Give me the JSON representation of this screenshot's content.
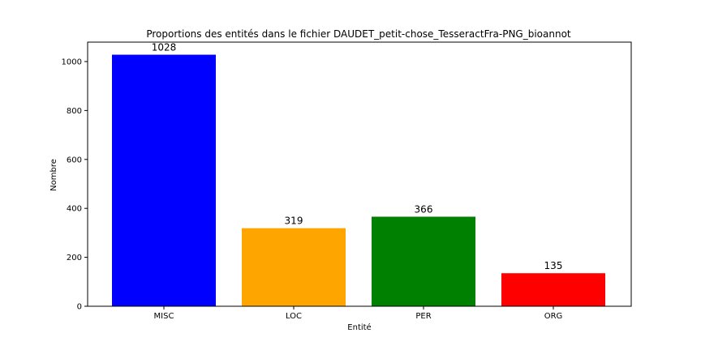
{
  "chart_data": {
    "type": "bar",
    "title": "Proportions des entités dans le fichier DAUDET_petit-chose_TesseractFra-PNG_bioannot",
    "xlabel": "Entité",
    "ylabel": "Nombre",
    "categories": [
      "MISC",
      "LOC",
      "PER",
      "ORG"
    ],
    "values": [
      1028,
      319,
      366,
      135
    ],
    "colors": [
      "#0000ff",
      "#ffa500",
      "#008000",
      "#ff0000"
    ],
    "ylim": [
      0,
      1079.4
    ],
    "yticks": [
      0,
      200,
      400,
      600,
      800,
      1000
    ],
    "grid": false,
    "legend": "none"
  }
}
